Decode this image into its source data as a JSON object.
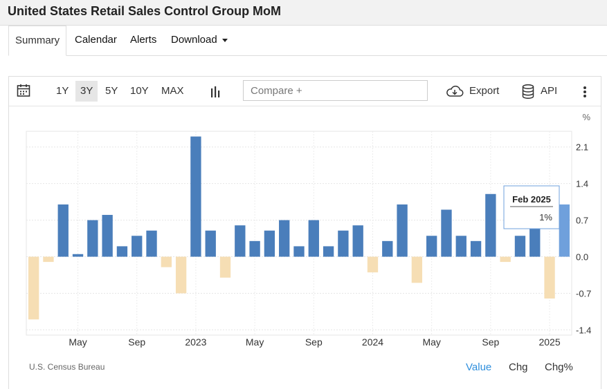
{
  "page": {
    "title": "United States Retail Sales Control Group MoM"
  },
  "tabs": [
    {
      "label": "Summary"
    },
    {
      "label": "Calendar"
    },
    {
      "label": "Alerts"
    },
    {
      "label": "Download"
    }
  ],
  "toolbar": {
    "ranges": [
      "1Y",
      "3Y",
      "5Y",
      "10Y",
      "MAX"
    ],
    "selected_range": "3Y",
    "compare_placeholder": "Compare +",
    "export_label": "Export",
    "api_label": "API"
  },
  "chart_data": {
    "type": "bar",
    "title": "United States Retail Sales Control Group MoM",
    "unit": "%",
    "x_tick_labels": [
      "May",
      "Sep",
      "2023",
      "May",
      "Sep",
      "2024",
      "May",
      "Sep",
      "2025"
    ],
    "y_ticks": [
      2.1,
      1.4,
      0.7,
      0.0,
      -0.7,
      -1.4
    ],
    "y_tick_labels": [
      "2.1",
      "1.4",
      "0.7",
      "0.0",
      "-0.7",
      "-1.4"
    ],
    "ylim": [
      -1.5,
      2.4
    ],
    "grid": true,
    "categories": [
      "Feb 2022",
      "Mar 2022",
      "Apr 2022",
      "May 2022",
      "Jun 2022",
      "Jul 2022",
      "Aug 2022",
      "Sep 2022",
      "Oct 2022",
      "Nov 2022",
      "Dec 2022",
      "Jan 2023",
      "Feb 2023",
      "Mar 2023",
      "Apr 2023",
      "May 2023",
      "Jun 2023",
      "Jul 2023",
      "Aug 2023",
      "Sep 2023",
      "Oct 2023",
      "Nov 2023",
      "Dec 2023",
      "Jan 2024",
      "Feb 2024",
      "Mar 2024",
      "Apr 2024",
      "May 2024",
      "Jun 2024",
      "Jul 2024",
      "Aug 2024",
      "Sep 2024",
      "Oct 2024",
      "Nov 2024",
      "Dec 2024",
      "Jan 2025",
      "Feb 2025"
    ],
    "values": [
      -1.2,
      -0.1,
      1.0,
      0.05,
      0.7,
      0.8,
      0.2,
      0.4,
      0.5,
      -0.2,
      -0.7,
      2.3,
      0.5,
      -0.4,
      0.6,
      0.3,
      0.5,
      0.7,
      0.2,
      0.7,
      0.2,
      0.5,
      0.6,
      -0.3,
      0.3,
      1.0,
      -0.5,
      0.4,
      0.9,
      0.4,
      0.3,
      1.2,
      -0.1,
      0.4,
      0.7,
      -0.8,
      1.0
    ],
    "tooltip": {
      "label": "Feb 2025",
      "value": "1%"
    },
    "colors": {
      "positive": "#4a7ebb",
      "negative": "#f6deb4",
      "highlight": "#6fa0dc"
    }
  },
  "footer": {
    "source": "U.S. Census Bureau",
    "options": [
      "Value",
      "Chg",
      "Chg%"
    ],
    "active_color": "#2f8fdd"
  }
}
